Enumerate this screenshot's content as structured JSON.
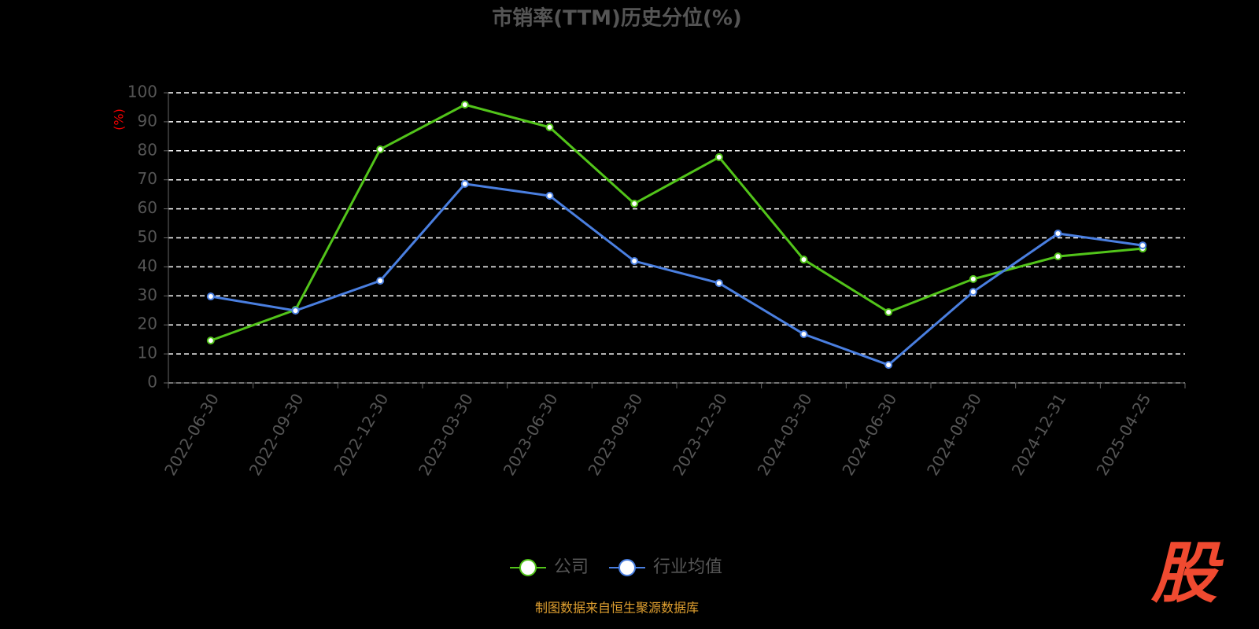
{
  "chart_data": {
    "type": "line",
    "title": "市销率(TTM)历史分位(%)",
    "y_label": "(%)",
    "categories": [
      "2022-06-30",
      "2022-09-30",
      "2022-12-30",
      "2023-03-30",
      "2023-06-30",
      "2023-09-30",
      "2023-12-30",
      "2024-03-30",
      "2024-06-30",
      "2024-09-30",
      "2024-12-31",
      "2025-04-25"
    ],
    "series": [
      {
        "name": "公司",
        "color": "#52c41a",
        "values": [
          14.6,
          25.2,
          80.5,
          95.9,
          88.1,
          61.8,
          77.8,
          42.5,
          24.4,
          35.8,
          43.6,
          46.3
        ]
      },
      {
        "name": "行业均值",
        "color": "#4a7fe0",
        "values": [
          29.8,
          24.9,
          35.2,
          68.6,
          64.5,
          42.0,
          34.4,
          16.8,
          6.2,
          31.4,
          51.5,
          47.4
        ]
      }
    ],
    "ylim": [
      0,
      100
    ],
    "yticks": [
      0,
      10,
      20,
      30,
      40,
      50,
      60,
      70,
      80,
      90,
      100
    ],
    "grid": true,
    "source": "制图数据来自恒生聚源数据库",
    "logo": "股"
  }
}
